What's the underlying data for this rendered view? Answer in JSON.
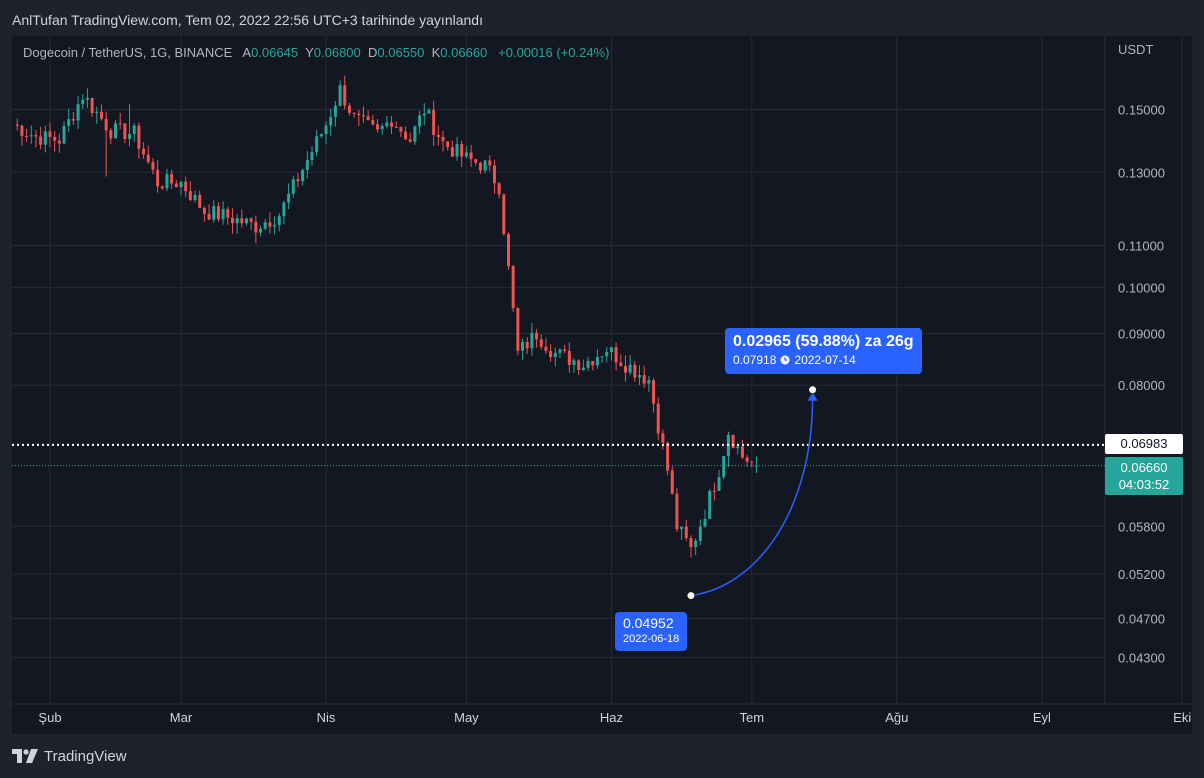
{
  "header": {
    "text": "AnlTufan TradingView.com, Tem 02, 2022 22:56 UTC+3 tarihinde yayınlandı"
  },
  "legend": {
    "symbol": "Dogecoin / TetherUS, 1G, BINANCE",
    "open_label": "A",
    "open": "0.06645",
    "high_label": "Y",
    "high": "0.06800",
    "low_label": "D",
    "low": "0.06550",
    "close_label": "K",
    "close": "0.06660",
    "change": "+0.00016 (+0.24%)"
  },
  "price_axis": {
    "unit": "USDT",
    "ticks": [
      "0.15000",
      "0.13000",
      "0.11000",
      "0.10000",
      "0.09000",
      "0.08000",
      "0.05800",
      "0.05200",
      "0.04700",
      "0.04300"
    ]
  },
  "time_axis": {
    "ticks": [
      "Şub",
      "Mar",
      "Nis",
      "May",
      "Haz",
      "Tem",
      "Ağu",
      "Eyl",
      "Eki"
    ]
  },
  "price_tags": {
    "line_price": "0.06983",
    "last_price": "0.06660",
    "countdown": "04:03:52"
  },
  "projection": {
    "summary": "0.02965 (59.88%) za 26g",
    "target_price": "0.07918",
    "target_date": "2022-07-14",
    "start_price": "0.04952",
    "start_date": "2022-06-18"
  },
  "footer": {
    "brand": "TradingView"
  },
  "colors": {
    "up": "#26a69a",
    "down": "#ef5350",
    "accent": "#2962ff",
    "background": "#131722",
    "frame": "#1e222d",
    "grid": "#252a36"
  },
  "icons": {
    "clock": "clock-icon",
    "brand": "tradingview-logo-icon"
  },
  "chart_data": {
    "type": "candlestick",
    "title": "Dogecoin / TetherUS, 1G, BINANCE",
    "y_unit": "USDT",
    "y_scale": "log",
    "ylim": [
      0.04,
      0.175
    ],
    "x_range": [
      "2022-01-24",
      "2022-10-10"
    ],
    "last": {
      "open": 0.06645,
      "high": 0.068,
      "low": 0.0655,
      "close": 0.0666
    },
    "reference_line": 0.06983,
    "anchors": [
      [
        "2022-01-24",
        0.145
      ],
      [
        "2022-01-29",
        0.141
      ],
      [
        "2022-02-03",
        0.14
      ],
      [
        "2022-02-08",
        0.155
      ],
      [
        "2022-02-14",
        0.143
      ],
      [
        "2022-02-19",
        0.142
      ],
      [
        "2022-02-24",
        0.127
      ],
      [
        "2022-03-01",
        0.127
      ],
      [
        "2022-03-06",
        0.119
      ],
      [
        "2022-03-12",
        0.117
      ],
      [
        "2022-03-17",
        0.115
      ],
      [
        "2022-03-22",
        0.118
      ],
      [
        "2022-03-27",
        0.131
      ],
      [
        "2022-04-01",
        0.145
      ],
      [
        "2022-04-04",
        0.157
      ],
      [
        "2022-04-07",
        0.147
      ],
      [
        "2022-04-12",
        0.142
      ],
      [
        "2022-04-15",
        0.147
      ],
      [
        "2022-04-19",
        0.14
      ],
      [
        "2022-04-22",
        0.15
      ],
      [
        "2022-04-26",
        0.139
      ],
      [
        "2022-05-01",
        0.134
      ],
      [
        "2022-05-05",
        0.132
      ],
      [
        "2022-05-08",
        0.126
      ],
      [
        "2022-05-12",
        0.086
      ],
      [
        "2022-05-16",
        0.09
      ],
      [
        "2022-05-20",
        0.086
      ],
      [
        "2022-05-26",
        0.084
      ],
      [
        "2022-05-31",
        0.087
      ],
      [
        "2022-06-04",
        0.084
      ],
      [
        "2022-06-09",
        0.081
      ],
      [
        "2022-06-13",
        0.066
      ],
      [
        "2022-06-15",
        0.058
      ],
      [
        "2022-06-18",
        0.055
      ],
      [
        "2022-06-21",
        0.06
      ],
      [
        "2022-06-24",
        0.066
      ],
      [
        "2022-06-26",
        0.072
      ],
      [
        "2022-06-29",
        0.068
      ],
      [
        "2022-07-02",
        0.0666
      ]
    ]
  }
}
